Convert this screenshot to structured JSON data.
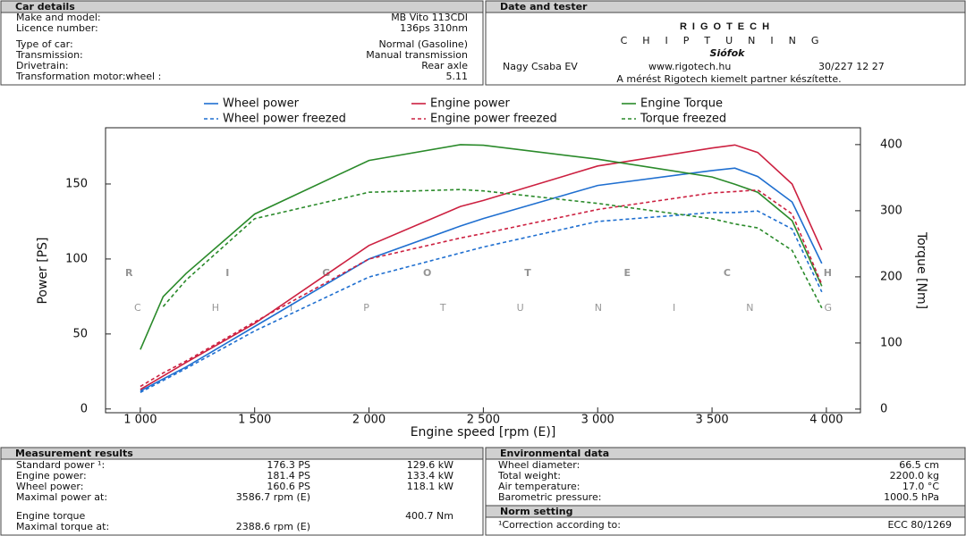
{
  "car_details": {
    "title": "Car details",
    "rows": [
      [
        "Make and model:",
        "MB Vito 113CDI"
      ],
      [
        "Licence number:",
        "136ps 310nm"
      ],
      [
        "Type of car:",
        "Normal (Gasoline)"
      ],
      [
        "Transmission:",
        "Manual transmission"
      ],
      [
        "Drivetrain:",
        "Rear axle"
      ],
      [
        "Transformation motor:wheel :",
        "5.11"
      ]
    ]
  },
  "date_and_tester": {
    "title": "Date and tester",
    "logo": "RIGOTECH",
    "logo_sub": "CHIPTUNING",
    "city": "Siófok",
    "contact_name": "Nagy Csaba EV",
    "website": "www.rigotech.hu",
    "phone": "30/227 12 27",
    "note": "A mérést Rigotech kiemelt partner készítette."
  },
  "chart_data": {
    "type": "line",
    "watermark": "RIGOTECH",
    "watermark_sub": "CHIPTUNING",
    "x_label": "Engine speed [rpm (E)]",
    "y_label": "Power [PS]",
    "y2_label": "Torque [Nm]",
    "x": [
      1000,
      1100,
      1200,
      1500,
      2000,
      2400,
      2500,
      3000,
      3500,
      3600,
      3700,
      3850,
      3980
    ],
    "series": [
      {
        "name": "Wheel power",
        "color": "#1f6fd0",
        "dash": false,
        "values": [
          12,
          20,
          28,
          55,
          100,
          122,
          127,
          149,
          159,
          160.6,
          155,
          138,
          97
        ]
      },
      {
        "name": "Engine power",
        "color": "#cc2040",
        "dash": false,
        "values": [
          13,
          22,
          31,
          57,
          109,
          135,
          139,
          162,
          174,
          176,
          171,
          150,
          106
        ]
      },
      {
        "name": "Engine Torque",
        "color": "#2a8a2a",
        "dash": false,
        "axis": "y2",
        "values": [
          90,
          170,
          205,
          295,
          376,
          400,
          399,
          378,
          351,
          340,
          328,
          285,
          186
        ]
      },
      {
        "name": "Wheel power freezed",
        "color": "#1f6fd0",
        "dash": true,
        "values": [
          11,
          19,
          27,
          52,
          88,
          104,
          108,
          125,
          131,
          131,
          132,
          120,
          78
        ]
      },
      {
        "name": "Engine power freezed",
        "color": "#cc2040",
        "dash": true,
        "values": [
          15,
          24,
          32,
          58,
          100,
          114,
          117,
          133,
          144,
          145,
          146,
          130,
          83
        ]
      },
      {
        "name": "Torque freezed",
        "color": "#2a8a2a",
        "dash": true,
        "axis": "y2",
        "values": [
          null,
          155,
          195,
          288,
          328,
          332,
          330,
          311,
          288,
          280,
          274,
          240,
          153
        ]
      }
    ],
    "xlim": [
      848,
      4149
    ],
    "xticks": [
      {
        "value": 1000,
        "label": "1 000"
      },
      {
        "value": 1500,
        "label": "1 500"
      },
      {
        "value": 2000,
        "label": "2 000"
      },
      {
        "value": 2500,
        "label": "2 500"
      },
      {
        "value": 3000,
        "label": "3 000"
      },
      {
        "value": 3500,
        "label": "3 500"
      },
      {
        "value": 4000,
        "label": "4 000"
      }
    ],
    "ylim": [
      -2.5,
      187.5
    ],
    "yticks": [
      0,
      50,
      100,
      150
    ],
    "y2lim": [
      -5.5,
      425.5
    ],
    "y2ticks": [
      0,
      100,
      200,
      300,
      400
    ],
    "grid": false
  },
  "measurement_results": {
    "title": "Measurement results",
    "rows": [
      {
        "label": "Standard power ¹:",
        "value": "176.3 PS",
        "value2": "129.6 kW",
        "color": "#cc2040"
      },
      {
        "label": "Engine power:",
        "value": "181.4 PS",
        "value2": "133.4 kW",
        "color": "#cc2040"
      },
      {
        "label": "Wheel power:",
        "value": "160.6 PS",
        "value2": "118.1 kW",
        "color": "#1f6fd0"
      },
      {
        "label": "Maximal power at:",
        "value": "3586.7 rpm (E)",
        "color": "#111111"
      },
      {
        "label": "Engine torque",
        "value2": "400.7 Nm",
        "color": "#2a8a2a"
      },
      {
        "label": "Maximal torque at:",
        "value": "2388.6 rpm (E)",
        "color": "#111111"
      }
    ]
  },
  "environmental_data": {
    "title": "Environmental data",
    "rows": [
      [
        "Wheel diameter:",
        "66.5 cm"
      ],
      [
        "Total weight:",
        "2200.0 kg"
      ],
      [
        "Air temperature:",
        "17.0 °C"
      ],
      [
        "Barometric pressure:",
        "1000.5 hPa"
      ]
    ]
  },
  "norm_setting": {
    "title": "Norm setting",
    "rows": [
      [
        "¹Correction according to:",
        "ECC 80/1269"
      ]
    ]
  }
}
